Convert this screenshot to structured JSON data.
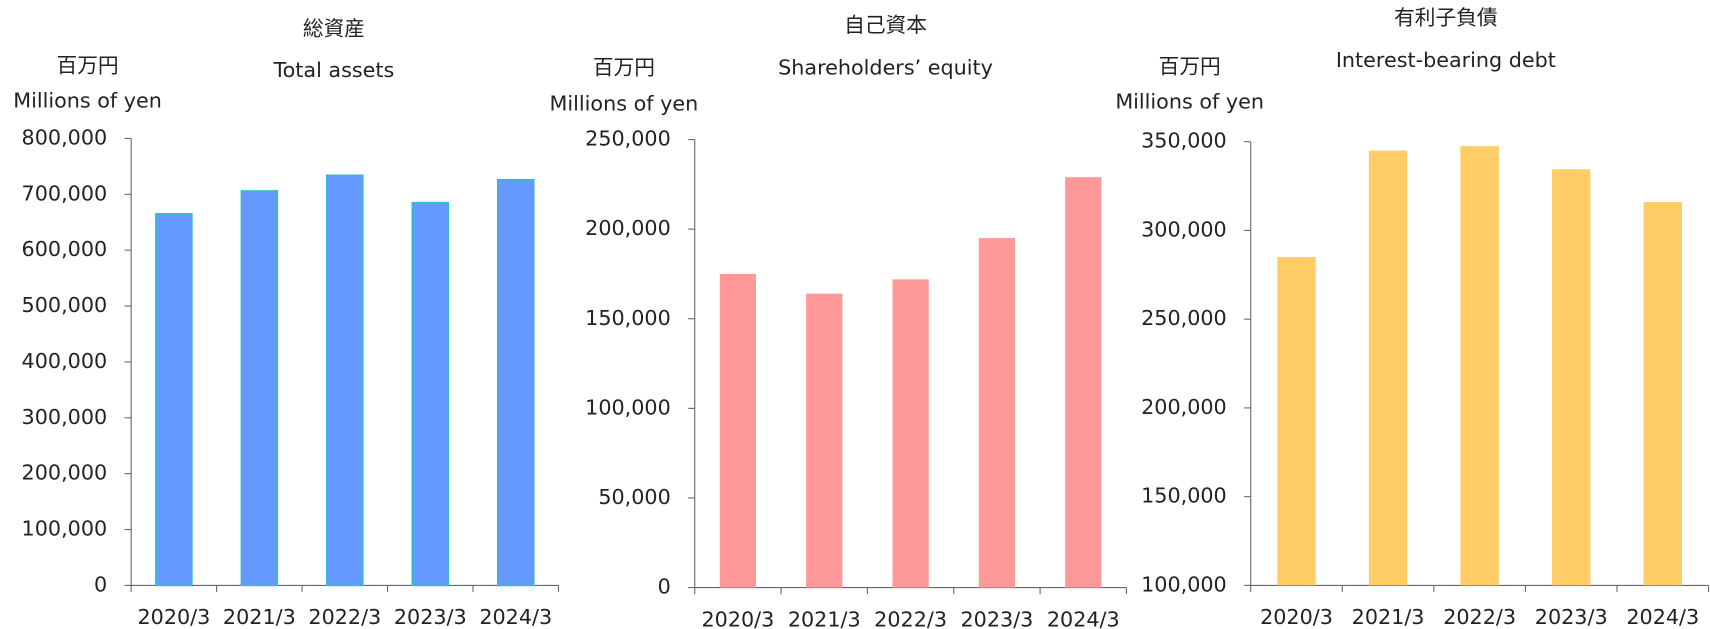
{
  "chart_data": [
    {
      "type": "bar",
      "title": "総資産",
      "subtitle": "Total assets",
      "unit": "百万円",
      "ylabel": "Millions of yen",
      "categories": [
        "2020/3",
        "2021/3",
        "2022/3",
        "2023/3",
        "2024/3"
      ],
      "values": [
        665000,
        706000,
        734000,
        685000,
        726000
      ],
      "color": "#6699ff",
      "edge_color": "#33bbcc",
      "ylim": [
        0,
        800000
      ],
      "yticks": [
        0,
        {
          "value": 100000,
          "label": "100,000"
        },
        {
          "value": 200000,
          "label": "200,000"
        },
        {
          "value": 300000,
          "label": "300,000"
        },
        {
          "value": 400000,
          "label": "400,000"
        },
        {
          "value": 500000,
          "label": "500,000"
        },
        {
          "value": 600000,
          "label": "600,000"
        },
        {
          "value": 700000,
          "label": "700,000"
        },
        {
          "value": 800000,
          "label": "800,000"
        }
      ]
    },
    {
      "type": "bar",
      "title": "自己資本",
      "subtitle": "Shareholders’ equity",
      "unit": "百万円",
      "ylabel": "Millions of yen",
      "categories": [
        "2020/3",
        "2021/3",
        "2022/3",
        "2023/3",
        "2024/3"
      ],
      "values": [
        175000,
        164000,
        172000,
        195000,
        229000
      ],
      "color": "#ff9999",
      "ylim": [
        0,
        250000
      ],
      "yticks": [
        0,
        {
          "value": 50000,
          "label": "50,000"
        },
        {
          "value": 100000,
          "label": "100,000"
        },
        {
          "value": 150000,
          "label": "150,000"
        },
        {
          "value": 200000,
          "label": "200,000"
        },
        {
          "value": 250000,
          "label": "250,000"
        }
      ]
    },
    {
      "type": "bar",
      "title": "有利子負債",
      "subtitle": "Interest-bearing debt",
      "unit": "百万円",
      "ylabel": "Millions of yen",
      "categories": [
        "2020/3",
        "2021/3",
        "2022/3",
        "2023/3",
        "2024/3"
      ],
      "values": [
        285000,
        345000,
        347500,
        334500,
        316000
      ],
      "color": "#ffcc66",
      "ylim": [
        100000,
        350000
      ],
      "yticks": [
        {
          "value": 100000,
          "label": "100,000"
        },
        {
          "value": 150000,
          "label": "150,000"
        },
        {
          "value": 200000,
          "label": "200,000"
        },
        {
          "value": 250000,
          "label": "250,000"
        },
        {
          "value": 300000,
          "label": "300,000"
        },
        {
          "value": 350000,
          "label": "350,000"
        }
      ]
    }
  ]
}
